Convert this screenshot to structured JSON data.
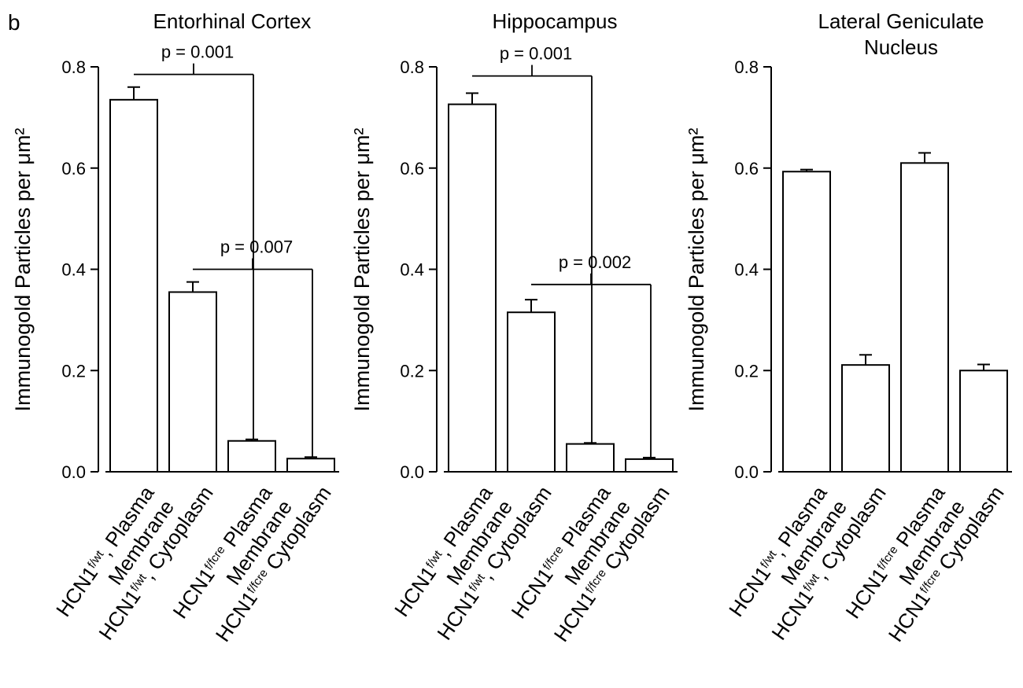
{
  "panel_letter": "b",
  "chart_data": [
    {
      "type": "bar",
      "title": "Entorhinal Cortex",
      "ylabel": "Immunogold Particles per μm²",
      "ylim": [
        0,
        0.8
      ],
      "yticks": [
        "0.0",
        "0.2",
        "0.4",
        "0.6",
        "0.8"
      ],
      "categories": [
        {
          "lines": [
            [
              {
                "t": "HCN1"
              },
              {
                "t": "f/wt",
                "sup": true
              },
              {
                "t": ", Plasma"
              }
            ],
            [
              {
                "t": "Membrane"
              }
            ]
          ]
        },
        {
          "lines": [
            [
              {
                "t": "HCN1"
              },
              {
                "t": "f/wt",
                "sup": true
              },
              {
                "t": ", Cytoplasm"
              }
            ]
          ]
        },
        {
          "lines": [
            [
              {
                "t": "HCN1"
              },
              {
                "t": "f/fcre",
                "sup": true
              },
              {
                "t": " Plasma"
              }
            ],
            [
              {
                "t": "Membrane"
              }
            ]
          ]
        },
        {
          "lines": [
            [
              {
                "t": "HCN1"
              },
              {
                "t": "f/fcre",
                "sup": true
              },
              {
                "t": " Cytoplasm"
              }
            ]
          ]
        }
      ],
      "values": [
        0.735,
        0.355,
        0.061,
        0.026
      ],
      "errors": [
        0.025,
        0.02,
        0.003,
        0.003
      ],
      "comparisons": [
        {
          "label": "p = 0.001",
          "from": 0,
          "to": 2,
          "level": 0.785
        },
        {
          "label": "p = 0.007",
          "from": 1,
          "to": 3,
          "level": 0.4
        }
      ]
    },
    {
      "type": "bar",
      "title": "Hippocampus",
      "ylabel": "Immunogold Particles per μm²",
      "ylim": [
        0,
        0.8
      ],
      "yticks": [
        "0.0",
        "0.2",
        "0.4",
        "0.6",
        "0.8"
      ],
      "categories": [
        {
          "lines": [
            [
              {
                "t": "HCN1"
              },
              {
                "t": "f/wt",
                "sup": true
              },
              {
                "t": ", Plasma"
              }
            ],
            [
              {
                "t": "Membrane"
              }
            ]
          ]
        },
        {
          "lines": [
            [
              {
                "t": "HCN1"
              },
              {
                "t": "f/wt",
                "sup": true
              },
              {
                "t": ", Cytoplasm"
              }
            ]
          ]
        },
        {
          "lines": [
            [
              {
                "t": "HCN1"
              },
              {
                "t": "f/fcre",
                "sup": true
              },
              {
                "t": " Plasma"
              }
            ],
            [
              {
                "t": "Membrane"
              }
            ]
          ]
        },
        {
          "lines": [
            [
              {
                "t": "HCN1"
              },
              {
                "t": "f/fcre",
                "sup": true
              },
              {
                "t": " Cytoplasm"
              }
            ]
          ]
        }
      ],
      "values": [
        0.726,
        0.315,
        0.055,
        0.025
      ],
      "errors": [
        0.022,
        0.025,
        0.002,
        0.003
      ],
      "comparisons": [
        {
          "label": "p = 0.001",
          "from": 0,
          "to": 2,
          "level": 0.782
        },
        {
          "label": "p = 0.002",
          "from": 1,
          "to": 3,
          "level": 0.37
        }
      ]
    },
    {
      "type": "bar",
      "title": "Lateral Geniculate\nNucleus",
      "ylabel": "Immunogold Particles per μm²",
      "ylim": [
        0,
        0.8
      ],
      "yticks": [
        "0.0",
        "0.2",
        "0.4",
        "0.6",
        "0.8"
      ],
      "categories": [
        {
          "lines": [
            [
              {
                "t": "HCN1"
              },
              {
                "t": "f/wt",
                "sup": true
              },
              {
                "t": ", Plasma"
              }
            ],
            [
              {
                "t": "Membrane"
              }
            ]
          ]
        },
        {
          "lines": [
            [
              {
                "t": "HCN1"
              },
              {
                "t": "f/wt",
                "sup": true
              },
              {
                "t": ", Cytoplasm"
              }
            ]
          ]
        },
        {
          "lines": [
            [
              {
                "t": "HCN1"
              },
              {
                "t": "f/fcre",
                "sup": true
              },
              {
                "t": " Plasma"
              }
            ],
            [
              {
                "t": "Membrane"
              }
            ]
          ]
        },
        {
          "lines": [
            [
              {
                "t": "HCN1"
              },
              {
                "t": "f/fcre",
                "sup": true
              },
              {
                "t": " Cytoplasm"
              }
            ]
          ]
        }
      ],
      "values": [
        0.593,
        0.211,
        0.61,
        0.2
      ],
      "errors": [
        0.004,
        0.02,
        0.02,
        0.012
      ],
      "comparisons": []
    }
  ]
}
